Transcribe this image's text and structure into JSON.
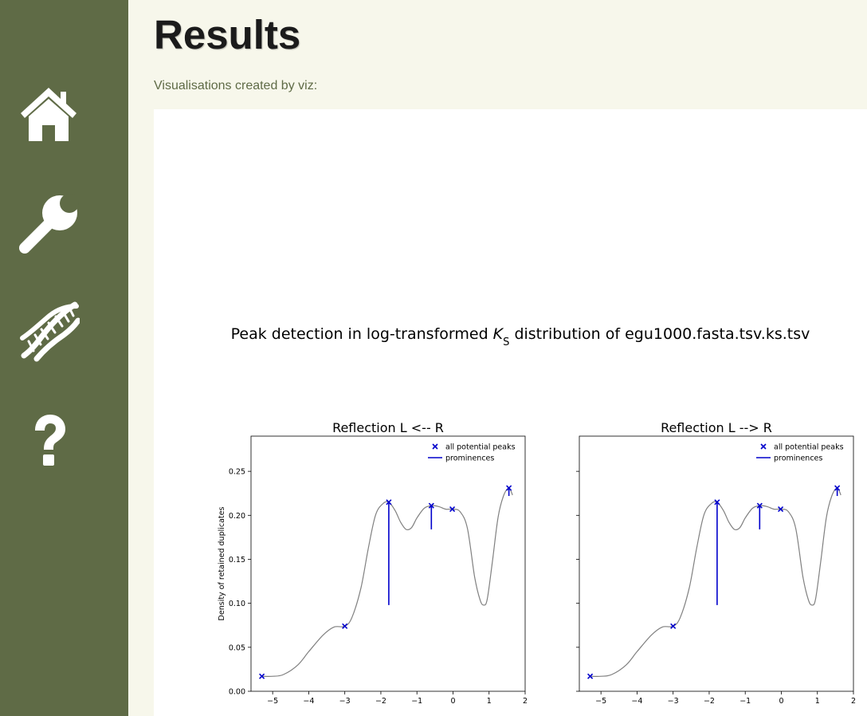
{
  "sidebar": {
    "items": [
      {
        "icon": "home-icon",
        "label": ""
      },
      {
        "icon": "wrench-icon",
        "label": ""
      },
      {
        "icon": "dna-icon",
        "label": ""
      },
      {
        "icon": "question-icon",
        "label": ""
      }
    ],
    "color": "#5f6b46"
  },
  "header": {
    "title": "Results",
    "subtitle": "Visualisations created by viz:"
  },
  "figure": {
    "suptitle_prefix": "Peak detection in log-transformed ",
    "suptitle_sym": "K",
    "suptitle_sub": "S",
    "suptitle_suffix": " distribution of egu1000.fasta.tsv.ks.tsv"
  },
  "chart_data": [
    {
      "type": "line",
      "title": "Reflection L <-- R",
      "xlabel": "",
      "ylabel": "Density of retained duplicates",
      "xlim": [
        -5.6,
        2.0
      ],
      "ylim": [
        0.0,
        0.29
      ],
      "xticks": [
        -5,
        -4,
        -3,
        -2,
        -1,
        0,
        1,
        2
      ],
      "xtick_labels": [
        "−5",
        "−4",
        "−3",
        "−2",
        "−1",
        "0",
        "1",
        "2"
      ],
      "yticks": [
        0.0,
        0.05,
        0.1,
        0.15,
        0.2,
        0.25
      ],
      "ytick_labels": [
        "0.00",
        "0.05",
        "0.10",
        "0.15",
        "0.20",
        "0.25"
      ],
      "legend": {
        "position": "top-right",
        "entries": [
          "all potential peaks",
          "prominences"
        ]
      },
      "series": [
        {
          "name": "density",
          "x": [
            -5.3,
            -5.0,
            -4.7,
            -4.3,
            -4.0,
            -3.6,
            -3.3,
            -3.0,
            -2.8,
            -2.55,
            -2.35,
            -2.15,
            -1.95,
            -1.78,
            -1.6,
            -1.45,
            -1.3,
            -1.15,
            -1.0,
            -0.8,
            -0.6,
            -0.4,
            -0.2,
            0.0,
            0.2,
            0.4,
            0.6,
            0.75,
            0.85,
            0.95,
            1.1,
            1.25,
            1.4,
            1.55,
            1.65
          ],
          "y": [
            0.017,
            0.017,
            0.019,
            0.03,
            0.045,
            0.064,
            0.073,
            0.074,
            0.084,
            0.118,
            0.162,
            0.2,
            0.213,
            0.215,
            0.205,
            0.192,
            0.184,
            0.186,
            0.197,
            0.208,
            0.211,
            0.21,
            0.207,
            0.207,
            0.204,
            0.185,
            0.13,
            0.104,
            0.098,
            0.105,
            0.15,
            0.198,
            0.222,
            0.231,
            0.223
          ]
        },
        {
          "name": "all potential peaks",
          "x": [
            -5.3,
            -3.0,
            -1.78,
            -0.6,
            -0.02,
            1.55
          ],
          "y": [
            0.017,
            0.074,
            0.215,
            0.211,
            0.207,
            0.231
          ]
        }
      ],
      "prominences": [
        {
          "x": -1.78,
          "y_top": 0.215,
          "y_bottom": 0.098
        },
        {
          "x": -0.6,
          "y_top": 0.211,
          "y_bottom": 0.184
        },
        {
          "x": 1.55,
          "y_top": 0.231,
          "y_bottom": 0.222
        }
      ]
    },
    {
      "type": "line",
      "title": "Reflection L --> R",
      "xlabel": "",
      "ylabel": "",
      "xlim": [
        -5.6,
        2.0
      ],
      "ylim": [
        0.0,
        0.29
      ],
      "xticks": [
        -5,
        -4,
        -3,
        -2,
        -1,
        0,
        1,
        2
      ],
      "xtick_labels": [
        "−5",
        "−4",
        "−3",
        "−2",
        "−1",
        "0",
        "1",
        "2"
      ],
      "yticks": [
        0.0,
        0.05,
        0.1,
        0.15,
        0.2,
        0.25
      ],
      "ytick_labels": [],
      "legend": {
        "position": "top-right",
        "entries": [
          "all potential peaks",
          "prominences"
        ]
      },
      "series": [
        {
          "name": "density",
          "x": [
            -5.3,
            -5.0,
            -4.7,
            -4.3,
            -4.0,
            -3.6,
            -3.3,
            -3.0,
            -2.8,
            -2.55,
            -2.35,
            -2.15,
            -1.95,
            -1.78,
            -1.6,
            -1.45,
            -1.3,
            -1.15,
            -1.0,
            -0.8,
            -0.6,
            -0.4,
            -0.2,
            0.0,
            0.2,
            0.4,
            0.6,
            0.75,
            0.85,
            0.95,
            1.1,
            1.25,
            1.4,
            1.55,
            1.65
          ],
          "y": [
            0.017,
            0.017,
            0.019,
            0.03,
            0.045,
            0.064,
            0.073,
            0.074,
            0.084,
            0.118,
            0.162,
            0.2,
            0.213,
            0.215,
            0.205,
            0.192,
            0.184,
            0.186,
            0.197,
            0.208,
            0.211,
            0.21,
            0.207,
            0.207,
            0.204,
            0.185,
            0.13,
            0.104,
            0.098,
            0.105,
            0.15,
            0.198,
            0.222,
            0.231,
            0.223
          ]
        },
        {
          "name": "all potential peaks",
          "x": [
            -5.3,
            -3.0,
            -1.78,
            -0.6,
            -0.02,
            1.55
          ],
          "y": [
            0.017,
            0.074,
            0.215,
            0.211,
            0.207,
            0.231
          ]
        }
      ],
      "prominences": [
        {
          "x": -1.78,
          "y_top": 0.215,
          "y_bottom": 0.098
        },
        {
          "x": -0.6,
          "y_top": 0.211,
          "y_bottom": 0.184
        },
        {
          "x": 1.55,
          "y_top": 0.231,
          "y_bottom": 0.222
        }
      ]
    }
  ]
}
